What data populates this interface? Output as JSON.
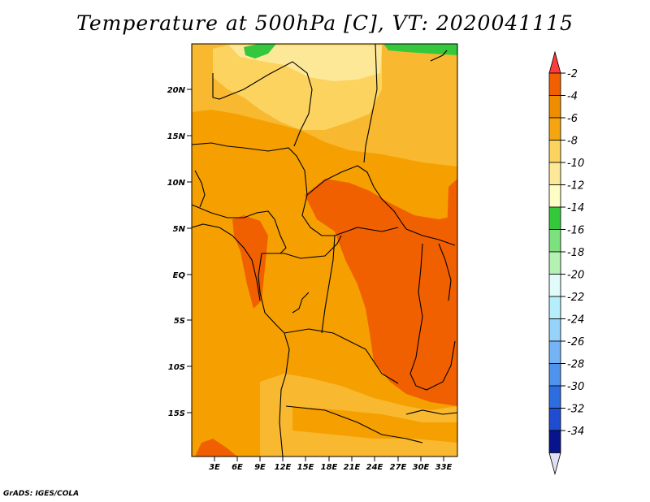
{
  "title": "Temperature at 500hPa [C], VT: 2020041115",
  "credit": "GrADS: IGES/COLA",
  "map": {
    "lat_labels": [
      "20N",
      "15N",
      "10N",
      "5N",
      "EQ",
      "5S",
      "10S",
      "15S"
    ],
    "lon_labels": [
      "3E",
      "6E",
      "9E",
      "12E",
      "15E",
      "18E",
      "21E",
      "24E",
      "27E",
      "30E",
      "33E"
    ]
  },
  "colorbar": {
    "labels": [
      "-2",
      "-4",
      "-6",
      "-8",
      "-10",
      "-12",
      "-14",
      "-16",
      "-18",
      "-20",
      "-22",
      "-24",
      "-26",
      "-28",
      "-30",
      "-32",
      "-34"
    ],
    "colors": [
      "#fa3c3c",
      "#f06000",
      "#f08c00",
      "#f5a50f",
      "#fbd35e",
      "#fde897",
      "#fffdc6",
      "#36c83c",
      "#7de180",
      "#b4f1b3",
      "#e1fbfa",
      "#b4effb",
      "#97d2fa",
      "#74b3f5",
      "#4f93ed",
      "#2d6de0",
      "#1f4cd1",
      "#08148c",
      "#e0e0f5"
    ]
  },
  "colors": {
    "field_base": "#f5a000",
    "field_warm": "#f06000",
    "field_light": "#f8b830",
    "field_cool": "#fbd35e",
    "field_coolest": "#fde897",
    "green": "#36c83c"
  }
}
